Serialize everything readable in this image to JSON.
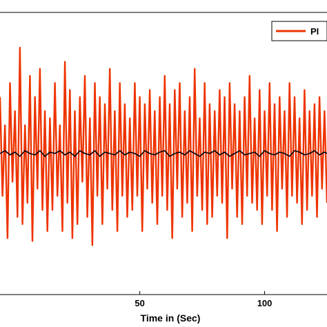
{
  "chart_data": {
    "type": "line",
    "title": "",
    "xlabel": "Time in (Sec)",
    "ylabel": "",
    "x_visible_range": [
      -6,
      125
    ],
    "xticks": [
      50,
      100
    ],
    "y_range": [
      -1.0,
      1.0
    ],
    "yticks_visible": false,
    "grid": false,
    "legend": {
      "placement": "top-right",
      "entries": [
        "PI"
      ]
    },
    "series": [
      {
        "name": "PI",
        "color": "#ee3300",
        "x": [
          -6,
          -5,
          -4,
          -3,
          -2,
          -1,
          0,
          1,
          2,
          3,
          4,
          5,
          6,
          7,
          8,
          9,
          10,
          11,
          12,
          13,
          14,
          15,
          16,
          17,
          18,
          19,
          20,
          21,
          22,
          23,
          24,
          25,
          26,
          27,
          28,
          29,
          30,
          31,
          32,
          33,
          34,
          35,
          36,
          37,
          38,
          39,
          40,
          41,
          42,
          43,
          44,
          45,
          46,
          47,
          48,
          49,
          50,
          51,
          52,
          53,
          54,
          55,
          56,
          57,
          58,
          59,
          60,
          61,
          62,
          63,
          64,
          65,
          66,
          67,
          68,
          69,
          70,
          71,
          72,
          73,
          74,
          75,
          76,
          77,
          78,
          79,
          80,
          81,
          82,
          83,
          84,
          85,
          86,
          87,
          88,
          89,
          90,
          91,
          92,
          93,
          94,
          95,
          96,
          97,
          98,
          99,
          100,
          101,
          102,
          103,
          104,
          105,
          106,
          107,
          108,
          109,
          110,
          111,
          112,
          113,
          114,
          115,
          116,
          117,
          118,
          119,
          120,
          121,
          122,
          123,
          124,
          125
        ],
        "y": [
          0.4,
          -0.3,
          0.2,
          -0.6,
          0.5,
          -0.2,
          0.3,
          -0.45,
          0.75,
          -0.5,
          0.2,
          -0.35,
          0.55,
          -0.62,
          0.4,
          -0.25,
          0.6,
          -0.4,
          0.3,
          -0.55,
          0.25,
          -0.4,
          0.5,
          -0.3,
          0.2,
          -0.55,
          0.65,
          -0.35,
          0.45,
          -0.6,
          0.3,
          -0.5,
          0.4,
          -0.2,
          0.55,
          -0.45,
          0.25,
          -0.65,
          0.5,
          -0.3,
          0.4,
          -0.5,
          0.35,
          -0.25,
          0.6,
          -0.4,
          0.3,
          -0.55,
          0.5,
          -0.3,
          0.35,
          -0.45,
          0.25,
          -0.4,
          0.5,
          -0.3,
          0.4,
          -0.55,
          0.35,
          -0.25,
          0.45,
          -0.35,
          0.3,
          -0.5,
          0.4,
          -0.3,
          0.55,
          -0.4,
          0.35,
          -0.6,
          0.45,
          -0.25,
          0.5,
          -0.45,
          0.3,
          -0.35,
          0.4,
          -0.55,
          0.6,
          -0.3,
          0.25,
          -0.4,
          0.5,
          -0.5,
          0.35,
          -0.45,
          0.3,
          -0.3,
          0.45,
          -0.35,
          0.4,
          -0.6,
          0.5,
          -0.25,
          0.35,
          -0.45,
          0.3,
          -0.5,
          0.4,
          -0.3,
          0.55,
          -0.35,
          0.25,
          -0.4,
          0.45,
          -0.5,
          0.3,
          -0.3,
          0.5,
          -0.4,
          0.35,
          -0.55,
          0.4,
          -0.25,
          0.3,
          -0.45,
          0.5,
          -0.3,
          0.4,
          -0.35,
          0.25,
          -0.5,
          0.45,
          -0.4,
          0.3,
          -0.3,
          0.35,
          -0.45,
          0.4,
          -0.25,
          0.3,
          -0.35
        ]
      },
      {
        "color": "#000000",
        "x": [
          -6,
          -4,
          -2,
          0,
          2,
          4,
          6,
          8,
          10,
          12,
          14,
          16,
          18,
          20,
          22,
          24,
          26,
          28,
          30,
          32,
          34,
          36,
          38,
          40,
          42,
          44,
          46,
          48,
          50,
          52,
          54,
          56,
          58,
          60,
          62,
          64,
          66,
          68,
          70,
          72,
          74,
          76,
          78,
          80,
          82,
          84,
          86,
          88,
          90,
          92,
          94,
          96,
          98,
          100,
          102,
          104,
          106,
          108,
          110,
          112,
          114,
          116,
          118,
          120,
          122,
          124,
          125
        ],
        "y": [
          0.0,
          0.02,
          -0.01,
          0.01,
          -0.02,
          0.02,
          0.0,
          -0.01,
          0.02,
          -0.02,
          0.01,
          0.0,
          0.02,
          -0.01,
          0.01,
          -0.02,
          0.02,
          0.0,
          -0.01,
          0.02,
          -0.02,
          0.01,
          0.0,
          -0.01,
          0.02,
          -0.01,
          0.01,
          0.0,
          -0.02,
          0.02,
          0.0,
          -0.01,
          0.01,
          0.02,
          -0.02,
          0.0,
          0.01,
          -0.01,
          0.02,
          0.0,
          -0.02,
          0.01,
          0.0,
          0.02,
          -0.01,
          0.01,
          -0.02,
          0.0,
          0.02,
          -0.01,
          0.0,
          0.01,
          -0.02,
          0.02,
          0.0,
          -0.01,
          0.01,
          0.0,
          -0.02,
          0.02,
          0.01,
          -0.01,
          0.0,
          0.02,
          -0.01,
          0.01,
          0.0
        ]
      }
    ]
  }
}
